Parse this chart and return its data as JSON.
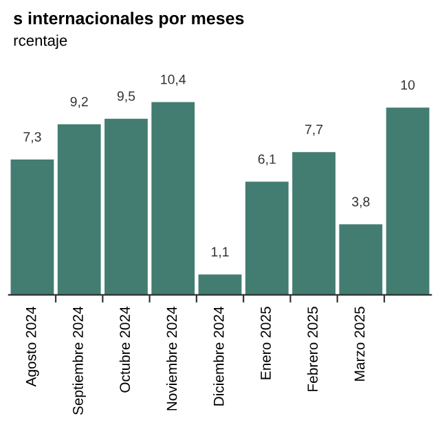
{
  "chart_data": {
    "type": "bar",
    "title": "s internacionales por meses",
    "subtitle": "rcentaje",
    "categories": [
      "Agosto 2024",
      "Septiembre 2024",
      "Octubre 2024",
      "Noviembre 2024",
      "Diciembre 2024",
      "Enero 2025",
      "Febrero 2025",
      "Marzo 2025",
      null
    ],
    "values": [
      7.3,
      9.2,
      9.5,
      10.4,
      1.1,
      6.1,
      7.7,
      3.8,
      10.1
    ],
    "value_labels": [
      "7,3",
      "9,2",
      "9,5",
      "10,4",
      "1,1",
      "6,1",
      "7,7",
      "3,8",
      "10"
    ],
    "color": "#437d72",
    "grid": false,
    "legend": false
  }
}
